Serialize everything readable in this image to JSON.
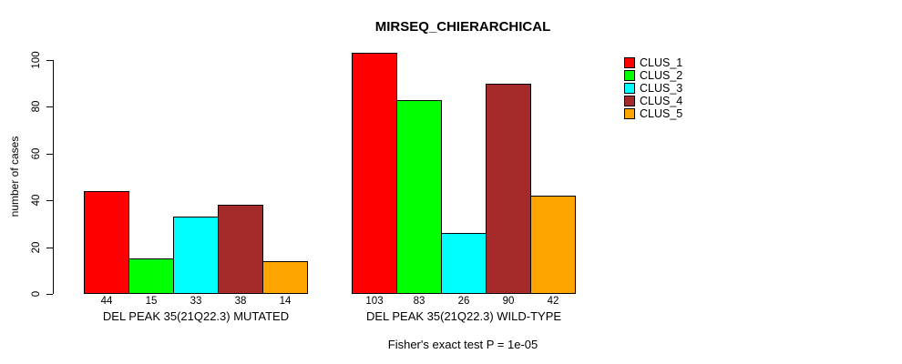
{
  "title": "MIRSEQ_CHIERARCHICAL",
  "footer": "Fisher's exact test P = 1e-05",
  "y_axis_label": "number of cases",
  "legend": {
    "items": [
      {
        "label": "CLUS_1",
        "color": "#FF0000"
      },
      {
        "label": "CLUS_2",
        "color": "#00FF00"
      },
      {
        "label": "CLUS_3",
        "color": "#00FFFF"
      },
      {
        "label": "CLUS_4",
        "color": "#A52A2A"
      },
      {
        "label": "CLUS_5",
        "color": "#FFA500"
      }
    ]
  },
  "chart_data": {
    "type": "bar",
    "title": "MIRSEQ_CHIERARCHICAL",
    "xlabel": "",
    "ylabel": "number of cases",
    "ylim": [
      0,
      100
    ],
    "yticks": [
      0,
      20,
      40,
      60,
      80,
      100
    ],
    "grid": false,
    "legend_position": "right-outside",
    "categories": [
      "DEL PEAK 35(21Q22.3) MUTATED",
      "DEL PEAK 35(21Q22.3) WILD-TYPE"
    ],
    "series": [
      {
        "name": "CLUS_1",
        "color": "#FF0000",
        "values": [
          44,
          103
        ]
      },
      {
        "name": "CLUS_2",
        "color": "#00FF00",
        "values": [
          15,
          83
        ]
      },
      {
        "name": "CLUS_3",
        "color": "#00FFFF",
        "values": [
          33,
          26
        ]
      },
      {
        "name": "CLUS_4",
        "color": "#A52A2A",
        "values": [
          38,
          90
        ]
      },
      {
        "name": "CLUS_5",
        "color": "#FFA500",
        "values": [
          14,
          42
        ]
      }
    ],
    "bar_value_labels": [
      [
        "44",
        "15",
        "33",
        "38",
        "14"
      ],
      [
        "103",
        "83",
        "26",
        "90",
        "42"
      ]
    ],
    "annotation": "Fisher's exact test P = 1e-05"
  }
}
